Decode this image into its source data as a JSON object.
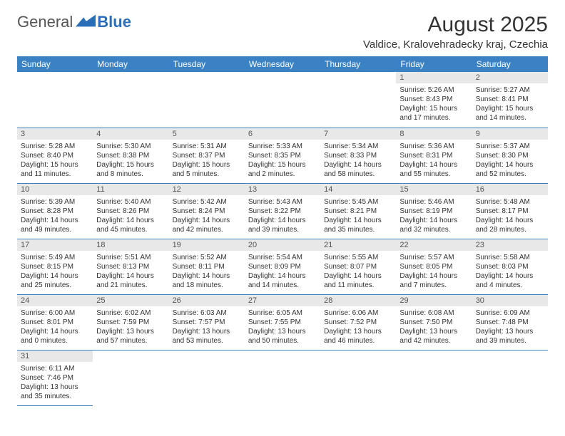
{
  "logo": {
    "text1": "General",
    "text2": "Blue"
  },
  "title": "August 2025",
  "location": "Valdice, Kralovehradecky kraj, Czechia",
  "colors": {
    "header_bg": "#3b82c4",
    "header_text": "#ffffff",
    "daynum_bg": "#e8e8e8",
    "border": "#3b82c4",
    "accent": "#2a6eb8"
  },
  "weekdays": [
    "Sunday",
    "Monday",
    "Tuesday",
    "Wednesday",
    "Thursday",
    "Friday",
    "Saturday"
  ],
  "weeks": [
    [
      null,
      null,
      null,
      null,
      null,
      {
        "n": "1",
        "sr": "5:26 AM",
        "ss": "8:43 PM",
        "dl": "15 hours and 17 minutes."
      },
      {
        "n": "2",
        "sr": "5:27 AM",
        "ss": "8:41 PM",
        "dl": "15 hours and 14 minutes."
      }
    ],
    [
      {
        "n": "3",
        "sr": "5:28 AM",
        "ss": "8:40 PM",
        "dl": "15 hours and 11 minutes."
      },
      {
        "n": "4",
        "sr": "5:30 AM",
        "ss": "8:38 PM",
        "dl": "15 hours and 8 minutes."
      },
      {
        "n": "5",
        "sr": "5:31 AM",
        "ss": "8:37 PM",
        "dl": "15 hours and 5 minutes."
      },
      {
        "n": "6",
        "sr": "5:33 AM",
        "ss": "8:35 PM",
        "dl": "15 hours and 2 minutes."
      },
      {
        "n": "7",
        "sr": "5:34 AM",
        "ss": "8:33 PM",
        "dl": "14 hours and 58 minutes."
      },
      {
        "n": "8",
        "sr": "5:36 AM",
        "ss": "8:31 PM",
        "dl": "14 hours and 55 minutes."
      },
      {
        "n": "9",
        "sr": "5:37 AM",
        "ss": "8:30 PM",
        "dl": "14 hours and 52 minutes."
      }
    ],
    [
      {
        "n": "10",
        "sr": "5:39 AM",
        "ss": "8:28 PM",
        "dl": "14 hours and 49 minutes."
      },
      {
        "n": "11",
        "sr": "5:40 AM",
        "ss": "8:26 PM",
        "dl": "14 hours and 45 minutes."
      },
      {
        "n": "12",
        "sr": "5:42 AM",
        "ss": "8:24 PM",
        "dl": "14 hours and 42 minutes."
      },
      {
        "n": "13",
        "sr": "5:43 AM",
        "ss": "8:22 PM",
        "dl": "14 hours and 39 minutes."
      },
      {
        "n": "14",
        "sr": "5:45 AM",
        "ss": "8:21 PM",
        "dl": "14 hours and 35 minutes."
      },
      {
        "n": "15",
        "sr": "5:46 AM",
        "ss": "8:19 PM",
        "dl": "14 hours and 32 minutes."
      },
      {
        "n": "16",
        "sr": "5:48 AM",
        "ss": "8:17 PM",
        "dl": "14 hours and 28 minutes."
      }
    ],
    [
      {
        "n": "17",
        "sr": "5:49 AM",
        "ss": "8:15 PM",
        "dl": "14 hours and 25 minutes."
      },
      {
        "n": "18",
        "sr": "5:51 AM",
        "ss": "8:13 PM",
        "dl": "14 hours and 21 minutes."
      },
      {
        "n": "19",
        "sr": "5:52 AM",
        "ss": "8:11 PM",
        "dl": "14 hours and 18 minutes."
      },
      {
        "n": "20",
        "sr": "5:54 AM",
        "ss": "8:09 PM",
        "dl": "14 hours and 14 minutes."
      },
      {
        "n": "21",
        "sr": "5:55 AM",
        "ss": "8:07 PM",
        "dl": "14 hours and 11 minutes."
      },
      {
        "n": "22",
        "sr": "5:57 AM",
        "ss": "8:05 PM",
        "dl": "14 hours and 7 minutes."
      },
      {
        "n": "23",
        "sr": "5:58 AM",
        "ss": "8:03 PM",
        "dl": "14 hours and 4 minutes."
      }
    ],
    [
      {
        "n": "24",
        "sr": "6:00 AM",
        "ss": "8:01 PM",
        "dl": "14 hours and 0 minutes."
      },
      {
        "n": "25",
        "sr": "6:02 AM",
        "ss": "7:59 PM",
        "dl": "13 hours and 57 minutes."
      },
      {
        "n": "26",
        "sr": "6:03 AM",
        "ss": "7:57 PM",
        "dl": "13 hours and 53 minutes."
      },
      {
        "n": "27",
        "sr": "6:05 AM",
        "ss": "7:55 PM",
        "dl": "13 hours and 50 minutes."
      },
      {
        "n": "28",
        "sr": "6:06 AM",
        "ss": "7:52 PM",
        "dl": "13 hours and 46 minutes."
      },
      {
        "n": "29",
        "sr": "6:08 AM",
        "ss": "7:50 PM",
        "dl": "13 hours and 42 minutes."
      },
      {
        "n": "30",
        "sr": "6:09 AM",
        "ss": "7:48 PM",
        "dl": "13 hours and 39 minutes."
      }
    ],
    [
      {
        "n": "31",
        "sr": "6:11 AM",
        "ss": "7:46 PM",
        "dl": "13 hours and 35 minutes."
      },
      null,
      null,
      null,
      null,
      null,
      null
    ]
  ],
  "labels": {
    "sunrise": "Sunrise: ",
    "sunset": "Sunset: ",
    "daylight": "Daylight: "
  }
}
